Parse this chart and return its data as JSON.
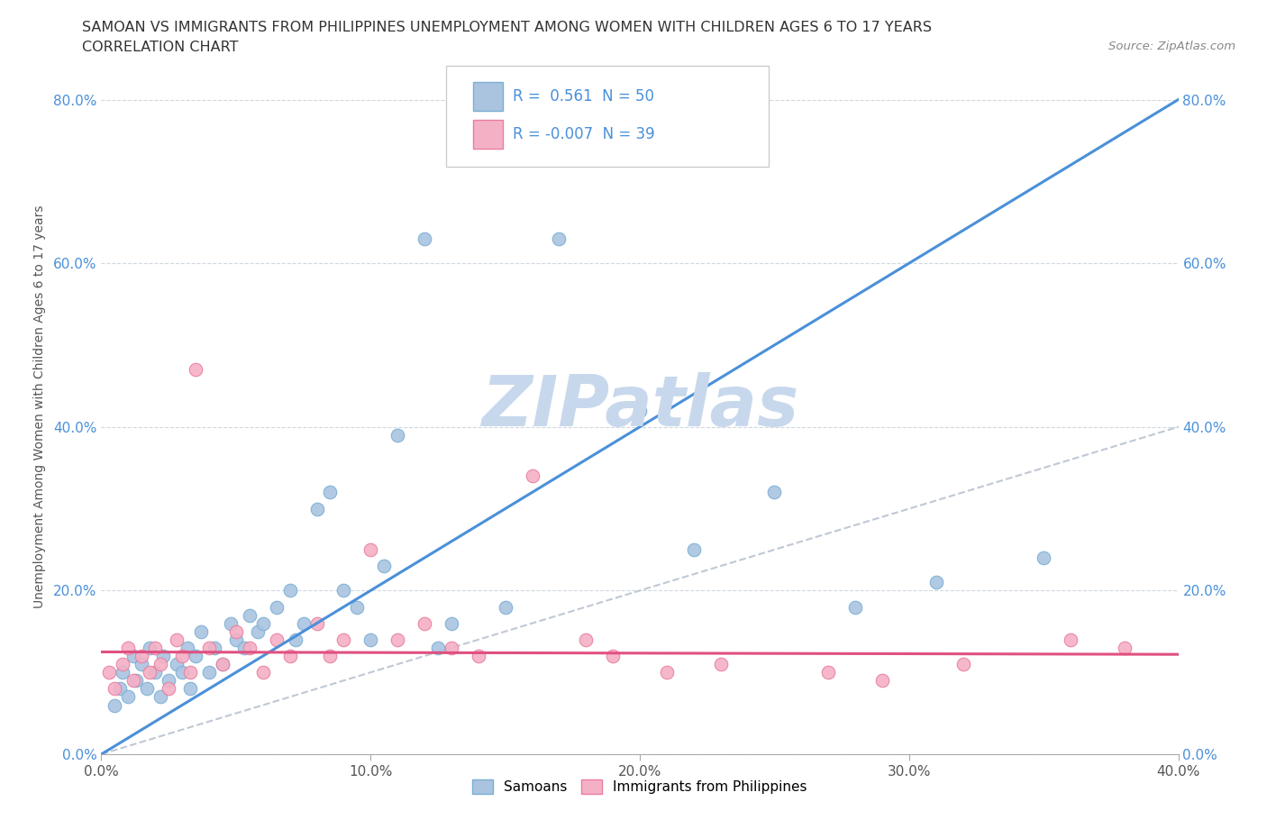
{
  "title_line1": "SAMOAN VS IMMIGRANTS FROM PHILIPPINES UNEMPLOYMENT AMONG WOMEN WITH CHILDREN AGES 6 TO 17 YEARS",
  "title_line2": "CORRELATION CHART",
  "source_text": "Source: ZipAtlas.com",
  "ylabel": "Unemployment Among Women with Children Ages 6 to 17 years",
  "xlim": [
    0.0,
    0.4
  ],
  "ylim": [
    0.0,
    0.85
  ],
  "xtick_labels": [
    "0.0%",
    "10.0%",
    "20.0%",
    "30.0%",
    "40.0%"
  ],
  "xtick_vals": [
    0.0,
    0.1,
    0.2,
    0.3,
    0.4
  ],
  "ytick_labels": [
    "0.0%",
    "20.0%",
    "40.0%",
    "60.0%",
    "80.0%"
  ],
  "ytick_vals": [
    0.0,
    0.2,
    0.4,
    0.6,
    0.8
  ],
  "right_ytick_labels": [
    "80.0%",
    "60.0%",
    "40.0%",
    "20.0%",
    "0.0%"
  ],
  "samoan_color": "#aac4e0",
  "samoan_edge_color": "#7aafd4",
  "philippines_color": "#f4b0c4",
  "philippines_edge_color": "#e87fa0",
  "trendline_samoan_color": "#4a90d9",
  "trendline_philippines_color": "#e05080",
  "trendline_diagonal_color": "#c0c8d4",
  "legend_R_samoan": "0.561",
  "legend_N_samoan": "50",
  "legend_R_philippines": "-0.007",
  "legend_N_philippines": "39",
  "watermark_text": "ZIPatlas",
  "watermark_color": "#c8d8ec",
  "samoan_trendline_x": [
    0.0,
    0.4
  ],
  "samoan_trendline_y": [
    0.0,
    0.8
  ],
  "philippines_trendline_x": [
    0.0,
    0.4
  ],
  "philippines_trendline_y": [
    0.125,
    0.122
  ],
  "samoan_x": [
    0.005,
    0.007,
    0.008,
    0.01,
    0.012,
    0.013,
    0.015,
    0.017,
    0.018,
    0.02,
    0.022,
    0.023,
    0.025,
    0.028,
    0.03,
    0.032,
    0.033,
    0.035,
    0.037,
    0.04,
    0.042,
    0.045,
    0.048,
    0.05,
    0.053,
    0.055,
    0.058,
    0.06,
    0.065,
    0.07,
    0.072,
    0.075,
    0.08,
    0.085,
    0.09,
    0.095,
    0.1,
    0.105,
    0.11,
    0.12,
    0.125,
    0.13,
    0.15,
    0.17,
    0.2,
    0.22,
    0.25,
    0.28,
    0.31,
    0.35
  ],
  "samoan_y": [
    0.06,
    0.08,
    0.1,
    0.07,
    0.12,
    0.09,
    0.11,
    0.08,
    0.13,
    0.1,
    0.07,
    0.12,
    0.09,
    0.11,
    0.1,
    0.13,
    0.08,
    0.12,
    0.15,
    0.1,
    0.13,
    0.11,
    0.16,
    0.14,
    0.13,
    0.17,
    0.15,
    0.16,
    0.18,
    0.2,
    0.14,
    0.16,
    0.3,
    0.32,
    0.2,
    0.18,
    0.14,
    0.23,
    0.39,
    0.63,
    0.13,
    0.16,
    0.18,
    0.63,
    0.42,
    0.25,
    0.32,
    0.18,
    0.21,
    0.24
  ],
  "philippines_x": [
    0.003,
    0.005,
    0.008,
    0.01,
    0.012,
    0.015,
    0.018,
    0.02,
    0.022,
    0.025,
    0.028,
    0.03,
    0.033,
    0.035,
    0.04,
    0.045,
    0.05,
    0.055,
    0.06,
    0.065,
    0.07,
    0.08,
    0.085,
    0.09,
    0.1,
    0.11,
    0.12,
    0.13,
    0.14,
    0.16,
    0.18,
    0.19,
    0.21,
    0.23,
    0.27,
    0.29,
    0.32,
    0.36,
    0.38
  ],
  "philippines_y": [
    0.1,
    0.08,
    0.11,
    0.13,
    0.09,
    0.12,
    0.1,
    0.13,
    0.11,
    0.08,
    0.14,
    0.12,
    0.1,
    0.47,
    0.13,
    0.11,
    0.15,
    0.13,
    0.1,
    0.14,
    0.12,
    0.16,
    0.12,
    0.14,
    0.25,
    0.14,
    0.16,
    0.13,
    0.12,
    0.34,
    0.14,
    0.12,
    0.1,
    0.11,
    0.1,
    0.09,
    0.11,
    0.14,
    0.13
  ]
}
